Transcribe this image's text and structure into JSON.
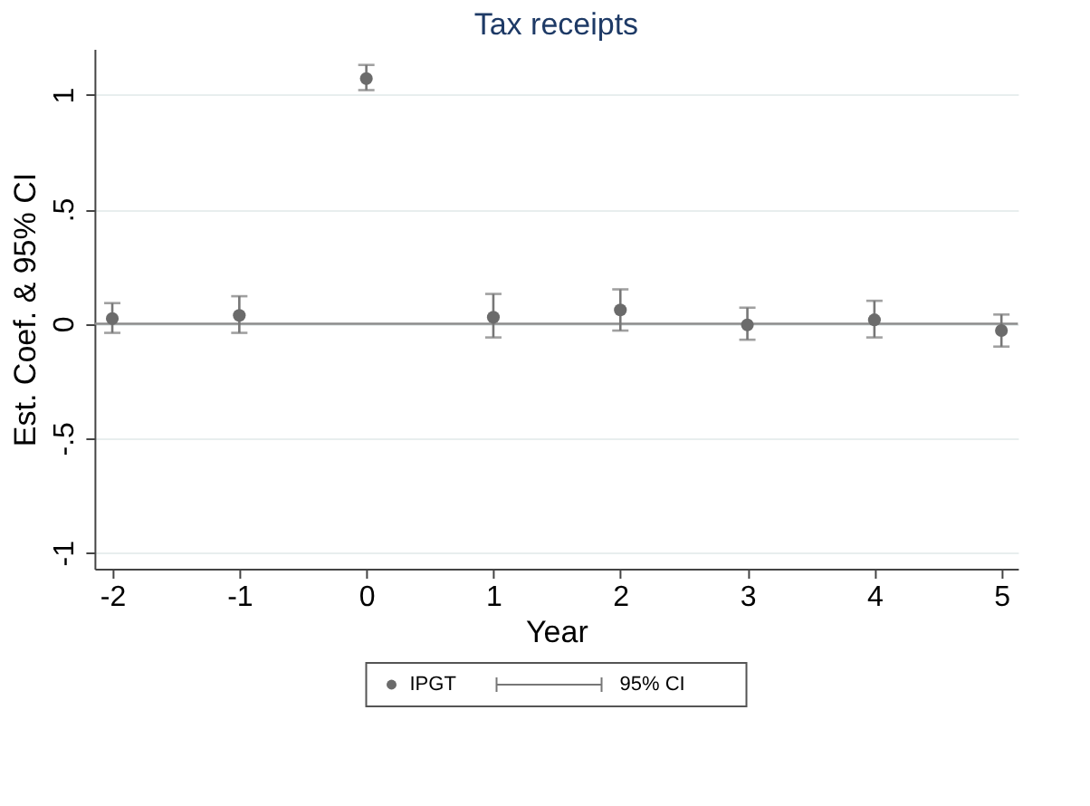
{
  "chart_data": {
    "type": "scatter",
    "title": "Tax receipts",
    "xlabel": "Year",
    "ylabel": "Est. Coef. & 95% CI",
    "x": [
      -2,
      -1,
      0,
      1,
      2,
      3,
      4,
      5
    ],
    "series": [
      {
        "name": "IPGT",
        "color": "#6b6b6b",
        "values": [
          0.022,
          0.036,
          1.07,
          0.028,
          0.06,
          -0.005,
          0.017,
          -0.03
        ],
        "errors": [
          [
            -0.04,
            0.09
          ],
          [
            -0.04,
            0.12
          ],
          [
            1.02,
            1.13
          ],
          [
            -0.06,
            0.13
          ],
          [
            -0.03,
            0.15
          ],
          [
            -0.07,
            0.07
          ],
          [
            -0.06,
            0.1
          ],
          [
            -0.1,
            0.04
          ]
        ]
      }
    ],
    "xlim": [
      -2.14,
      5.13
    ],
    "ylim": [
      -1.07,
      1.2
    ],
    "xticks": [
      -2,
      -1,
      0,
      1,
      2,
      3,
      4,
      5
    ],
    "yticks": [
      {
        "value": -1,
        "label": "-1"
      },
      {
        "value": -0.5,
        "label": "-.5"
      },
      {
        "value": 0,
        "label": "0"
      },
      {
        "value": 0.5,
        "label": ".5"
      },
      {
        "value": 1,
        "label": "1"
      }
    ],
    "ref_lines": [
      {
        "axis": "y",
        "value": 0,
        "label": null,
        "color": "#8c8c8c"
      }
    ],
    "annotations": [
      "95% CI"
    ],
    "grid": "y",
    "legend": "bottom",
    "marker": "circle"
  }
}
